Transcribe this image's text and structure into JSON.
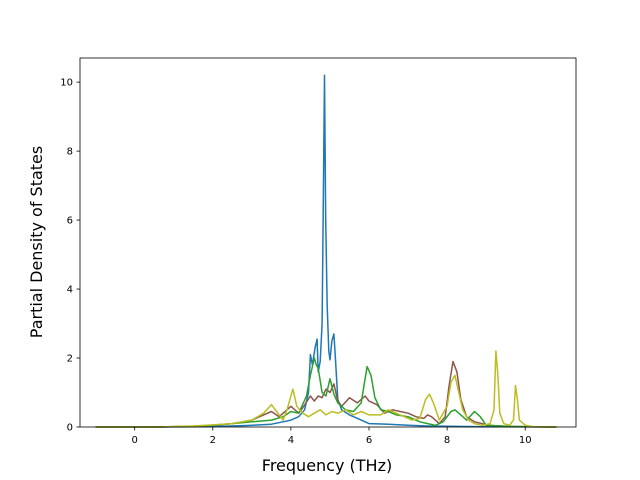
{
  "chart_data": {
    "type": "line",
    "title": "",
    "xlabel": "Frequency (THz)",
    "ylabel": "Partial Density of States",
    "xlim": [
      -1.4,
      11.3
    ],
    "ylim": [
      0,
      10.7
    ],
    "xticks": [
      0,
      2,
      4,
      6,
      8,
      10
    ],
    "yticks": [
      0,
      2,
      4,
      6,
      8,
      10
    ],
    "grid": false,
    "legend": "none",
    "series": [
      {
        "color": "#1f77b4",
        "points": [
          [
            -1.0,
            0
          ],
          [
            0.6,
            0
          ],
          [
            1.5,
            0.01
          ],
          [
            2.2,
            0.02
          ],
          [
            2.8,
            0.04
          ],
          [
            3.2,
            0.06
          ],
          [
            3.5,
            0.08
          ],
          [
            3.8,
            0.15
          ],
          [
            4.0,
            0.2
          ],
          [
            4.2,
            0.3
          ],
          [
            4.35,
            0.5
          ],
          [
            4.45,
            1.0
          ],
          [
            4.5,
            2.1
          ],
          [
            4.55,
            1.8
          ],
          [
            4.62,
            2.3
          ],
          [
            4.67,
            2.55
          ],
          [
            4.7,
            1.6
          ],
          [
            4.75,
            1.9
          ],
          [
            4.8,
            3.0
          ],
          [
            4.83,
            6.5
          ],
          [
            4.86,
            10.2
          ],
          [
            4.89,
            6.0
          ],
          [
            4.93,
            3.5
          ],
          [
            4.97,
            2.2
          ],
          [
            5.0,
            1.95
          ],
          [
            5.05,
            2.5
          ],
          [
            5.1,
            2.7
          ],
          [
            5.14,
            2.0
          ],
          [
            5.2,
            0.8
          ],
          [
            5.3,
            0.5
          ],
          [
            5.5,
            0.35
          ],
          [
            5.8,
            0.2
          ],
          [
            6.0,
            0.1
          ],
          [
            6.5,
            0.08
          ],
          [
            7.0,
            0.05
          ],
          [
            7.5,
            0.03
          ],
          [
            8.0,
            0.02
          ],
          [
            9.0,
            0.01
          ],
          [
            10.8,
            0
          ]
        ]
      },
      {
        "color": "#8c564b",
        "points": [
          [
            -1.0,
            0
          ],
          [
            0.6,
            0
          ],
          [
            1.5,
            0.02
          ],
          [
            2.0,
            0.05
          ],
          [
            2.5,
            0.1
          ],
          [
            3.0,
            0.2
          ],
          [
            3.3,
            0.35
          ],
          [
            3.5,
            0.45
          ],
          [
            3.7,
            0.3
          ],
          [
            3.9,
            0.5
          ],
          [
            4.0,
            0.6
          ],
          [
            4.2,
            0.4
          ],
          [
            4.3,
            0.55
          ],
          [
            4.5,
            0.9
          ],
          [
            4.6,
            0.75
          ],
          [
            4.7,
            0.9
          ],
          [
            4.8,
            0.85
          ],
          [
            4.9,
            1.1
          ],
          [
            5.0,
            1.0
          ],
          [
            5.1,
            1.25
          ],
          [
            5.2,
            0.75
          ],
          [
            5.3,
            0.6
          ],
          [
            5.5,
            0.85
          ],
          [
            5.7,
            0.7
          ],
          [
            5.9,
            0.9
          ],
          [
            6.0,
            0.75
          ],
          [
            6.2,
            0.65
          ],
          [
            6.4,
            0.4
          ],
          [
            6.6,
            0.5
          ],
          [
            6.8,
            0.45
          ],
          [
            7.0,
            0.4
          ],
          [
            7.2,
            0.3
          ],
          [
            7.4,
            0.25
          ],
          [
            7.5,
            0.35
          ],
          [
            7.6,
            0.3
          ],
          [
            7.8,
            0.1
          ],
          [
            7.95,
            0.3
          ],
          [
            8.05,
            1.2
          ],
          [
            8.15,
            1.9
          ],
          [
            8.25,
            1.6
          ],
          [
            8.35,
            0.8
          ],
          [
            8.5,
            0.3
          ],
          [
            8.7,
            0.15
          ],
          [
            8.9,
            0.1
          ],
          [
            9.0,
            0.05
          ],
          [
            9.5,
            0.02
          ],
          [
            10.0,
            0.01
          ],
          [
            10.8,
            0
          ]
        ]
      },
      {
        "color": "#2ca02c",
        "points": [
          [
            -1.0,
            0
          ],
          [
            0.6,
            0
          ],
          [
            1.5,
            0.02
          ],
          [
            2.0,
            0.05
          ],
          [
            2.5,
            0.1
          ],
          [
            3.0,
            0.15
          ],
          [
            3.5,
            0.2
          ],
          [
            3.8,
            0.3
          ],
          [
            4.0,
            0.45
          ],
          [
            4.2,
            0.4
          ],
          [
            4.4,
            0.9
          ],
          [
            4.5,
            1.5
          ],
          [
            4.6,
            2.0
          ],
          [
            4.65,
            1.8
          ],
          [
            4.7,
            1.7
          ],
          [
            4.8,
            1.0
          ],
          [
            4.9,
            0.9
          ],
          [
            5.0,
            1.4
          ],
          [
            5.1,
            0.95
          ],
          [
            5.2,
            0.7
          ],
          [
            5.4,
            0.5
          ],
          [
            5.6,
            0.45
          ],
          [
            5.8,
            0.7
          ],
          [
            5.9,
            1.4
          ],
          [
            5.95,
            1.75
          ],
          [
            6.05,
            1.5
          ],
          [
            6.15,
            0.85
          ],
          [
            6.3,
            0.5
          ],
          [
            6.5,
            0.45
          ],
          [
            6.7,
            0.35
          ],
          [
            7.0,
            0.3
          ],
          [
            7.3,
            0.15
          ],
          [
            7.5,
            0.1
          ],
          [
            7.7,
            0.05
          ],
          [
            7.9,
            0.15
          ],
          [
            8.1,
            0.45
          ],
          [
            8.2,
            0.5
          ],
          [
            8.35,
            0.35
          ],
          [
            8.5,
            0.2
          ],
          [
            8.7,
            0.45
          ],
          [
            8.85,
            0.3
          ],
          [
            9.0,
            0.05
          ],
          [
            9.5,
            0.02
          ],
          [
            10.8,
            0
          ]
        ]
      },
      {
        "color": "#bcbd22",
        "points": [
          [
            -1.0,
            0
          ],
          [
            0.6,
            0
          ],
          [
            1.5,
            0.03
          ],
          [
            2.0,
            0.06
          ],
          [
            2.5,
            0.1
          ],
          [
            3.0,
            0.2
          ],
          [
            3.3,
            0.4
          ],
          [
            3.5,
            0.65
          ],
          [
            3.6,
            0.5
          ],
          [
            3.8,
            0.2
          ],
          [
            3.9,
            0.5
          ],
          [
            4.05,
            1.1
          ],
          [
            4.15,
            0.6
          ],
          [
            4.3,
            0.4
          ],
          [
            4.45,
            0.3
          ],
          [
            4.6,
            0.4
          ],
          [
            4.75,
            0.5
          ],
          [
            4.9,
            0.35
          ],
          [
            5.05,
            0.45
          ],
          [
            5.2,
            0.4
          ],
          [
            5.4,
            0.5
          ],
          [
            5.6,
            0.35
          ],
          [
            5.8,
            0.45
          ],
          [
            6.0,
            0.35
          ],
          [
            6.3,
            0.35
          ],
          [
            6.5,
            0.5
          ],
          [
            6.7,
            0.4
          ],
          [
            6.9,
            0.3
          ],
          [
            7.1,
            0.2
          ],
          [
            7.3,
            0.25
          ],
          [
            7.45,
            0.8
          ],
          [
            7.55,
            0.95
          ],
          [
            7.65,
            0.7
          ],
          [
            7.8,
            0.2
          ],
          [
            8.0,
            0.6
          ],
          [
            8.1,
            1.3
          ],
          [
            8.2,
            1.5
          ],
          [
            8.3,
            1.0
          ],
          [
            8.4,
            0.5
          ],
          [
            8.55,
            0.2
          ],
          [
            8.7,
            0.1
          ],
          [
            8.9,
            0.05
          ],
          [
            9.1,
            0.1
          ],
          [
            9.2,
            0.5
          ],
          [
            9.25,
            2.2
          ],
          [
            9.3,
            1.5
          ],
          [
            9.35,
            0.4
          ],
          [
            9.45,
            0.1
          ],
          [
            9.6,
            0.05
          ],
          [
            9.7,
            0.2
          ],
          [
            9.75,
            1.2
          ],
          [
            9.8,
            0.8
          ],
          [
            9.85,
            0.2
          ],
          [
            10.0,
            0.05
          ],
          [
            10.2,
            0.01
          ],
          [
            10.8,
            0
          ]
        ]
      }
    ]
  }
}
